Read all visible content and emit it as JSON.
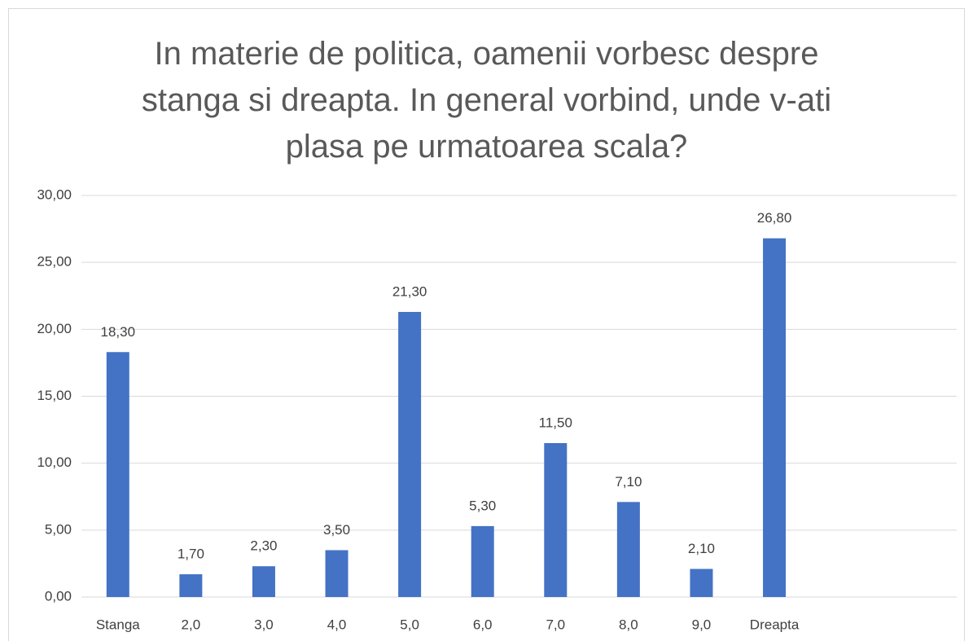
{
  "chart_data": {
    "type": "bar",
    "title": "In materie de politica, oamenii vorbesc despre stanga si dreapta. In general vorbind, unde v-ati plasa pe urmatoarea scala?",
    "categories": [
      "Stanga",
      "2,0",
      "3,0",
      "4,0",
      "5,0",
      "6,0",
      "7,0",
      "8,0",
      "9,0",
      "Dreapta",
      null,
      null
    ],
    "values": [
      18.3,
      1.7,
      2.3,
      3.5,
      21.3,
      5.3,
      11.5,
      7.1,
      2.1,
      26.8,
      null,
      null
    ],
    "value_labels": [
      "18,30",
      "1,70",
      "2,30",
      "3,50",
      "21,30",
      "5,30",
      "11,50",
      "7,10",
      "2,10",
      "26,80",
      null,
      null
    ],
    "color": "#4472c4",
    "ylim": [
      0,
      30
    ],
    "yticks": [
      {
        "value": 0,
        "label": "0,00"
      },
      {
        "value": 5,
        "label": "5,00"
      },
      {
        "value": 10,
        "label": "10,00"
      },
      {
        "value": 15,
        "label": "15,00"
      },
      {
        "value": 20,
        "label": "20,00"
      },
      {
        "value": 25,
        "label": "25,00"
      },
      {
        "value": 30,
        "label": "30,00"
      }
    ],
    "grid": true
  }
}
